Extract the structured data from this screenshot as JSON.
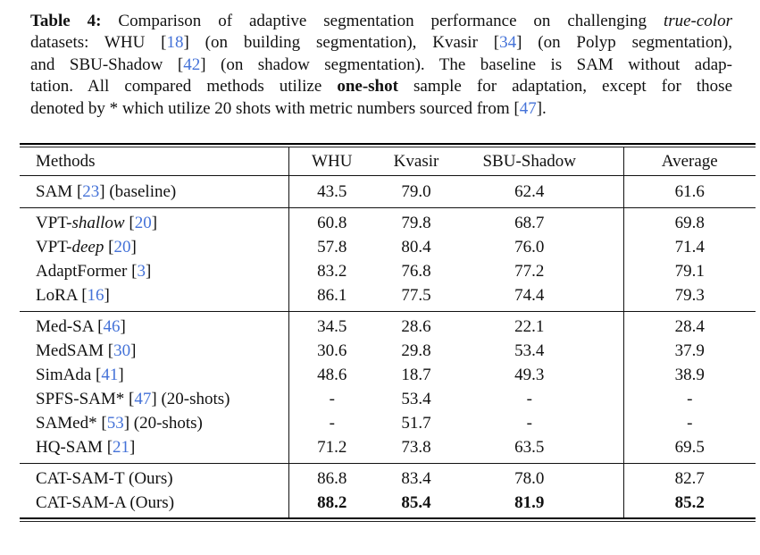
{
  "colors": {
    "ref_blue": "#4472d8",
    "rule_black": "#000000"
  },
  "caption": {
    "lines": [
      {
        "bold": "Table 4:",
        "t1": " Comparison of adaptive segmentation performance on challenging ",
        "it": "true-color"
      },
      {
        "t1": "datasets: WHU [",
        "r1": "18",
        "t2": "] (on building segmentation), Kvasir [",
        "r2": "34",
        "t3": "] (on Polyp segmentation),"
      },
      {
        "t1": "and SBU-Shadow [",
        "r1": "42",
        "t2": "] (on shadow segmentation). The baseline is SAM without adap-"
      },
      {
        "t1": "tation. All compared methods utilize ",
        "bold": "one-shot",
        "t2": " sample for adaptation, except for those"
      },
      {
        "t1": "denoted by * which utilize 20 shots with metric numbers sourced from [",
        "r1": "47",
        "t2": "]."
      }
    ]
  },
  "table": {
    "headers": [
      "Methods",
      "WHU",
      "Kvasir",
      "SBU-Shadow",
      "Average"
    ],
    "rows": [
      {
        "pre": "SAM",
        "it": "",
        "refo": " [",
        "ref": "23",
        "refc": "]",
        "post": " (baseline)",
        "values": [
          "43.5",
          "79.0",
          "62.4",
          "61.6"
        ]
      },
      {
        "pre": "VPT-",
        "it": "shallow",
        "refo": " [",
        "ref": "20",
        "refc": "]",
        "post": "",
        "values": [
          "60.8",
          "79.8",
          "68.7",
          "69.8"
        ]
      },
      {
        "pre": "VPT-",
        "it": "deep",
        "refo": " [",
        "ref": "20",
        "refc": "]",
        "post": "",
        "values": [
          "57.8",
          "80.4",
          "76.0",
          "71.4"
        ]
      },
      {
        "pre": "AdaptFormer",
        "it": "",
        "refo": " [",
        "ref": "3",
        "refc": "]",
        "post": "",
        "values": [
          "83.2",
          "76.8",
          "77.2",
          "79.1"
        ]
      },
      {
        "pre": "LoRA",
        "it": "",
        "refo": " [",
        "ref": "16",
        "refc": "]",
        "post": "",
        "values": [
          "86.1",
          "77.5",
          "74.4",
          "79.3"
        ]
      },
      {
        "pre": "Med-SA",
        "it": "",
        "refo": " [",
        "ref": "46",
        "refc": "]",
        "post": "",
        "values": [
          "34.5",
          "28.6",
          "22.1",
          "28.4"
        ]
      },
      {
        "pre": "MedSAM",
        "it": "",
        "refo": " [",
        "ref": "30",
        "refc": "]",
        "post": "",
        "values": [
          "30.6",
          "29.8",
          "53.4",
          "37.9"
        ]
      },
      {
        "pre": "SimAda",
        "it": "",
        "refo": " [",
        "ref": "41",
        "refc": "]",
        "post": "",
        "values": [
          "48.6",
          "18.7",
          "49.3",
          "38.9"
        ]
      },
      {
        "pre": "SPFS-SAM*",
        "it": "",
        "refo": " [",
        "ref": "47",
        "refc": "]",
        "post": " (20-shots)",
        "values": [
          "-",
          "53.4",
          "-",
          "-"
        ]
      },
      {
        "pre": "SAMed*",
        "it": "",
        "refo": " [",
        "ref": "53",
        "refc": "]",
        "post": " (20-shots)",
        "values": [
          "-",
          "51.7",
          "-",
          "-"
        ]
      },
      {
        "pre": "HQ-SAM",
        "it": "",
        "refo": " [",
        "ref": "21",
        "refc": "]",
        "post": "",
        "values": [
          "71.2",
          "73.8",
          "63.5",
          "69.5"
        ]
      },
      {
        "pre": "CAT-SAM-T",
        "it": "",
        "refo": "",
        "ref": "",
        "refc": "",
        "post": " (Ours)",
        "values": [
          "86.8",
          "83.4",
          "78.0",
          "82.7"
        ]
      },
      {
        "pre": "CAT-SAM-A",
        "it": "",
        "refo": "",
        "ref": "",
        "refc": "",
        "post": " (Ours)",
        "values": [
          "88.2",
          "85.4",
          "81.9",
          "85.2"
        ]
      }
    ]
  }
}
